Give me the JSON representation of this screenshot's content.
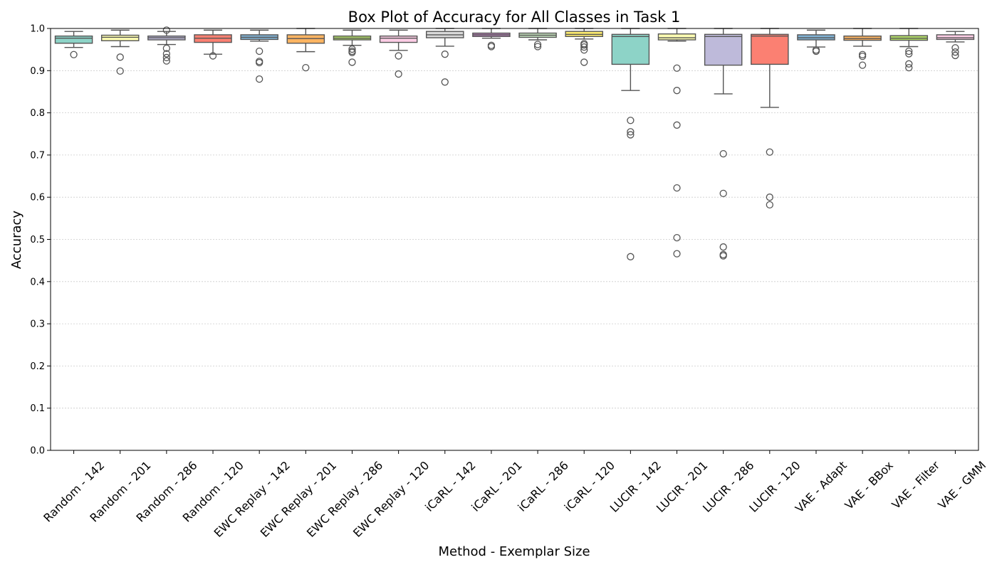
{
  "chart_data": {
    "type": "box",
    "title": "Box Plot of Accuracy for All Classes in Task 1",
    "xlabel": "Method - Exemplar Size",
    "ylabel": "Accuracy",
    "ylim": [
      0.0,
      1.0
    ],
    "yticks": [
      0.0,
      0.1,
      0.2,
      0.3,
      0.4,
      0.5,
      0.6,
      0.7,
      0.8,
      0.9,
      1.0
    ],
    "ytick_labels": [
      "0.0",
      "0.1",
      "0.2",
      "0.3",
      "0.4",
      "0.5",
      "0.6",
      "0.7",
      "0.8",
      "0.9",
      "1.0"
    ],
    "grid": "horizontal dotted",
    "categories": [
      "Random - 142",
      "Random - 201",
      "Random - 286",
      "Random - 120",
      "EWC Replay - 142",
      "EWC Replay - 201",
      "EWC Replay - 286",
      "EWC Replay - 120",
      "iCaRL - 142",
      "iCaRL - 201",
      "iCaRL - 286",
      "iCaRL - 120",
      "LUCIR - 142",
      "LUCIR - 201",
      "LUCIR - 286",
      "LUCIR - 120",
      "VAE - Adapt",
      "VAE - BBox",
      "VAE - Filter",
      "VAE - GMM"
    ],
    "colors": [
      "#8dd3c7",
      "#ffffb3",
      "#bebada",
      "#fb8072",
      "#80b1d3",
      "#fdb462",
      "#b3de69",
      "#fccde5",
      "#d9d9d9",
      "#bc80bd",
      "#ccebc5",
      "#ffed6f",
      "#8dd3c7",
      "#ffffb3",
      "#bebada",
      "#fb8072",
      "#80b1d3",
      "#fdb462",
      "#b3de69",
      "#fccde5"
    ],
    "boxes": [
      {
        "whislo": 0.955,
        "q1": 0.965,
        "med": 0.977,
        "q3": 0.982,
        "whishi": 0.993,
        "fliers": [
          0.938
        ]
      },
      {
        "whislo": 0.957,
        "q1": 0.971,
        "med": 0.979,
        "q3": 0.984,
        "whishi": 0.996,
        "fliers": [
          0.932,
          0.899
        ]
      },
      {
        "whislo": 0.962,
        "q1": 0.973,
        "med": 0.978,
        "q3": 0.982,
        "whishi": 0.993,
        "fliers": [
          0.996,
          0.953,
          0.94,
          0.931,
          0.923
        ]
      },
      {
        "whislo": 0.939,
        "q1": 0.967,
        "med": 0.977,
        "q3": 0.985,
        "whishi": 0.996,
        "fliers": [
          0.935
        ]
      },
      {
        "whislo": 0.97,
        "q1": 0.974,
        "med": 0.979,
        "q3": 0.985,
        "whishi": 0.996,
        "fliers": [
          0.946,
          0.922,
          0.919,
          0.88
        ]
      },
      {
        "whislo": 0.945,
        "q1": 0.965,
        "med": 0.976,
        "q3": 0.985,
        "whishi": 1.0,
        "fliers": [
          0.907
        ]
      },
      {
        "whislo": 0.96,
        "q1": 0.973,
        "med": 0.977,
        "q3": 0.982,
        "whishi": 0.996,
        "fliers": [
          0.951,
          0.946,
          0.943,
          0.92
        ]
      },
      {
        "whislo": 0.948,
        "q1": 0.967,
        "med": 0.977,
        "q3": 0.982,
        "whishi": 0.996,
        "fliers": [
          0.935,
          0.892
        ]
      },
      {
        "whislo": 0.958,
        "q1": 0.978,
        "med": 0.985,
        "q3": 0.993,
        "whishi": 1.0,
        "fliers": [
          0.939,
          0.873
        ]
      },
      {
        "whislo": 0.977,
        "q1": 0.981,
        "med": 0.985,
        "q3": 0.989,
        "whishi": 1.0,
        "fliers": [
          0.96,
          0.957
        ]
      },
      {
        "whislo": 0.973,
        "q1": 0.979,
        "med": 0.984,
        "q3": 0.989,
        "whishi": 1.0,
        "fliers": [
          0.962,
          0.957
        ]
      },
      {
        "whislo": 0.975,
        "q1": 0.981,
        "med": 0.986,
        "q3": 0.993,
        "whishi": 1.0,
        "fliers": [
          0.964,
          0.961,
          0.956,
          0.949,
          0.92
        ]
      },
      {
        "whislo": 0.853,
        "q1": 0.915,
        "med": 0.981,
        "q3": 0.986,
        "whishi": 1.0,
        "fliers": [
          0.782,
          0.755,
          0.748,
          0.459
        ]
      },
      {
        "whislo": 0.97,
        "q1": 0.973,
        "med": 0.978,
        "q3": 0.987,
        "whishi": 1.0,
        "fliers": [
          0.906,
          0.853,
          0.771,
          0.622,
          0.504,
          0.466
        ]
      },
      {
        "whislo": 0.845,
        "q1": 0.913,
        "med": 0.981,
        "q3": 0.986,
        "whishi": 1.0,
        "fliers": [
          0.703,
          0.609,
          0.482,
          0.464,
          0.461
        ]
      },
      {
        "whislo": 0.813,
        "q1": 0.915,
        "med": 0.982,
        "q3": 0.986,
        "whishi": 1.0,
        "fliers": [
          0.707,
          0.6,
          0.582
        ]
      },
      {
        "whislo": 0.956,
        "q1": 0.973,
        "med": 0.978,
        "q3": 0.985,
        "whishi": 0.996,
        "fliers": [
          0.949,
          0.946
        ]
      },
      {
        "whislo": 0.958,
        "q1": 0.972,
        "med": 0.976,
        "q3": 0.982,
        "whishi": 1.0,
        "fliers": [
          0.938,
          0.934,
          0.913
        ]
      },
      {
        "whislo": 0.957,
        "q1": 0.972,
        "med": 0.977,
        "q3": 0.983,
        "whishi": 1.0,
        "fliers": [
          0.946,
          0.94,
          0.916,
          0.907
        ]
      },
      {
        "whislo": 0.968,
        "q1": 0.974,
        "med": 0.978,
        "q3": 0.985,
        "whishi": 0.993,
        "fliers": [
          0.954,
          0.944,
          0.936
        ]
      }
    ]
  }
}
